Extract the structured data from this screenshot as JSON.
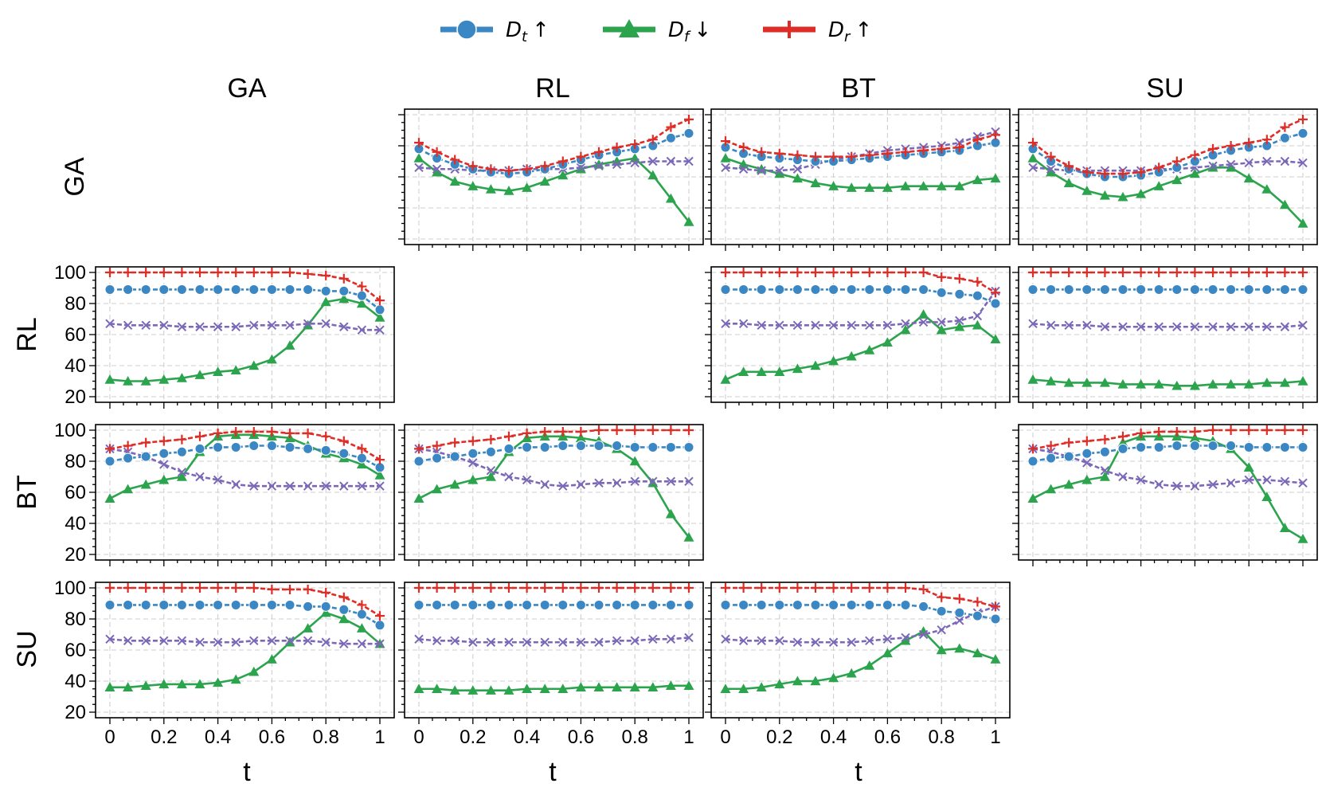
{
  "legend": [
    {
      "base": "D",
      "sub": "t",
      "arrow": "↑",
      "color": "#3a87c4",
      "marker": "circle"
    },
    {
      "base": "D",
      "sub": "f",
      "arrow": "↓",
      "color": "#2ca44e",
      "marker": "triangle"
    },
    {
      "base": "D",
      "sub": "r",
      "arrow": "↑",
      "color": "#de2d26",
      "marker": "plus"
    }
  ],
  "col_titles": [
    "GA",
    "RL",
    "BT",
    "SU"
  ],
  "row_titles": [
    "GA",
    "RL",
    "BT",
    "SU"
  ],
  "xlabel": "t",
  "colors": {
    "Dt": "#3a87c4",
    "Df": "#2ca44e",
    "Dr": "#de2d26",
    "X": "#7b68b8"
  },
  "chart_data": {
    "type": "line",
    "x": [
      0,
      0.0667,
      0.1333,
      0.2,
      0.2667,
      0.3333,
      0.4,
      0.4667,
      0.5333,
      0.6,
      0.6667,
      0.7333,
      0.8,
      0.8667,
      0.9333,
      1
    ],
    "x_ticks": [
      0,
      0.2,
      0.4,
      0.6,
      0.8,
      1
    ],
    "x_tick_labels": [
      "0",
      "0.2",
      "0.4",
      "0.6",
      "0.8",
      "1"
    ],
    "ylim": [
      20,
      100
    ],
    "y_ticks": [
      20,
      40,
      60,
      80,
      100
    ],
    "y_tick_labels": [
      "20",
      "40",
      "60",
      "80",
      "100"
    ],
    "grid": true,
    "series_order": [
      "Df",
      "X",
      "Dt",
      "Dr"
    ],
    "panels": [
      {
        "row": 0,
        "col": 1,
        "series": {
          "Dt": [
            78,
            72,
            68,
            65,
            63,
            62,
            63,
            65,
            68,
            71,
            74,
            76,
            78,
            80,
            85,
            88
          ],
          "Df": [
            72,
            63,
            57,
            54,
            52,
            51,
            53,
            57,
            61,
            65,
            68,
            70,
            72,
            61,
            46,
            31
          ],
          "Dr": [
            82,
            76,
            71,
            67,
            65,
            64,
            65,
            67,
            70,
            73,
            76,
            79,
            81,
            84,
            92,
            97
          ],
          "X": [
            66,
            65,
            65,
            64,
            64,
            64,
            65,
            65,
            65,
            66,
            67,
            68,
            69,
            70,
            70,
            70
          ]
        }
      },
      {
        "row": 0,
        "col": 2,
        "series": {
          "Dt": [
            79,
            75,
            73,
            72,
            71,
            70,
            70,
            71,
            72,
            73,
            74,
            75,
            76,
            77,
            80,
            82
          ],
          "Df": [
            72,
            68,
            65,
            62,
            59,
            56,
            54,
            53,
            53,
            53,
            54,
            54,
            54,
            54,
            58,
            59
          ],
          "Dr": [
            83,
            79,
            76,
            75,
            74,
            73,
            73,
            73,
            74,
            75,
            76,
            77,
            78,
            79,
            84,
            87
          ],
          "X": [
            66,
            65,
            64,
            64,
            65,
            68,
            71,
            73,
            75,
            77,
            78,
            79,
            80,
            82,
            86,
            89
          ]
        }
      },
      {
        "row": 0,
        "col": 3,
        "series": {
          "Dt": [
            78,
            70,
            65,
            62,
            60,
            60,
            61,
            63,
            66,
            70,
            74,
            77,
            79,
            80,
            85,
            88
          ],
          "Df": [
            72,
            63,
            56,
            51,
            48,
            47,
            49,
            54,
            58,
            62,
            66,
            66,
            59,
            52,
            42,
            30
          ],
          "Dr": [
            82,
            73,
            67,
            63,
            62,
            62,
            63,
            66,
            70,
            74,
            78,
            80,
            82,
            84,
            92,
            97
          ],
          "X": [
            66,
            65,
            64,
            64,
            64,
            64,
            64,
            65,
            65,
            66,
            67,
            68,
            69,
            70,
            70,
            69
          ]
        }
      },
      {
        "row": 1,
        "col": 0,
        "series": {
          "Dt": [
            89,
            89,
            89,
            89,
            89,
            89,
            89,
            89,
            89,
            89,
            89,
            89,
            88,
            88,
            85,
            76
          ],
          "Df": [
            31,
            30,
            30,
            31,
            32,
            34,
            36,
            37,
            40,
            44,
            53,
            66,
            81,
            83,
            80,
            71
          ],
          "Dr": [
            100,
            100,
            100,
            100,
            100,
            100,
            100,
            100,
            100,
            100,
            100,
            99,
            98,
            96,
            91,
            82
          ],
          "X": [
            67,
            66,
            66,
            66,
            65,
            65,
            65,
            65,
            66,
            66,
            66,
            67,
            67,
            65,
            63,
            63
          ]
        }
      },
      {
        "row": 1,
        "col": 2,
        "series": {
          "Dt": [
            89,
            89,
            89,
            89,
            89,
            89,
            89,
            89,
            89,
            89,
            89,
            89,
            87,
            86,
            85,
            80
          ],
          "Df": [
            31,
            36,
            36,
            36,
            38,
            40,
            43,
            46,
            50,
            55,
            63,
            73,
            63,
            65,
            66,
            57
          ],
          "Dr": [
            100,
            100,
            100,
            100,
            100,
            100,
            100,
            100,
            100,
            100,
            100,
            100,
            97,
            96,
            94,
            87
          ],
          "X": [
            67,
            67,
            66,
            66,
            66,
            66,
            66,
            66,
            66,
            66,
            67,
            68,
            68,
            69,
            72,
            88
          ]
        }
      },
      {
        "row": 1,
        "col": 3,
        "series": {
          "Dt": [
            89,
            89,
            89,
            89,
            89,
            89,
            89,
            89,
            89,
            89,
            89,
            89,
            89,
            89,
            89,
            89
          ],
          "Df": [
            31,
            30,
            29,
            29,
            29,
            28,
            28,
            28,
            27,
            27,
            28,
            28,
            28,
            29,
            29,
            30
          ],
          "Dr": [
            100,
            100,
            100,
            100,
            100,
            100,
            100,
            100,
            100,
            100,
            100,
            100,
            100,
            100,
            100,
            100
          ],
          "X": [
            67,
            66,
            66,
            66,
            65,
            65,
            65,
            65,
            65,
            65,
            65,
            65,
            65,
            65,
            65,
            66
          ]
        }
      },
      {
        "row": 2,
        "col": 0,
        "series": {
          "Dt": [
            80,
            82,
            83,
            85,
            86,
            88,
            89,
            89,
            90,
            90,
            89,
            88,
            87,
            85,
            82,
            76
          ],
          "Df": [
            56,
            62,
            65,
            68,
            70,
            86,
            96,
            97,
            97,
            96,
            95,
            90,
            85,
            82,
            78,
            71
          ],
          "Dr": [
            88,
            90,
            92,
            93,
            94,
            96,
            98,
            99,
            99,
            99,
            98,
            98,
            96,
            93,
            88,
            81
          ],
          "X": [
            88,
            86,
            83,
            78,
            73,
            70,
            68,
            65,
            64,
            64,
            64,
            64,
            64,
            64,
            64,
            64
          ]
        }
      },
      {
        "row": 2,
        "col": 1,
        "series": {
          "Dt": [
            80,
            82,
            83,
            85,
            86,
            88,
            89,
            89,
            90,
            90,
            90,
            90,
            89,
            89,
            89,
            89
          ],
          "Df": [
            56,
            62,
            65,
            68,
            70,
            86,
            95,
            96,
            96,
            95,
            93,
            88,
            80,
            66,
            46,
            31
          ],
          "Dr": [
            88,
            90,
            92,
            93,
            94,
            96,
            98,
            99,
            99,
            99,
            100,
            100,
            100,
            100,
            100,
            100
          ],
          "X": [
            88,
            86,
            83,
            79,
            74,
            70,
            68,
            65,
            64,
            65,
            66,
            66,
            67,
            67,
            67,
            67
          ]
        }
      },
      {
        "row": 2,
        "col": 3,
        "series": {
          "Dt": [
            80,
            82,
            83,
            85,
            86,
            88,
            89,
            89,
            90,
            90,
            90,
            90,
            89,
            89,
            89,
            89
          ],
          "Df": [
            56,
            62,
            65,
            68,
            70,
            92,
            96,
            96,
            96,
            95,
            93,
            88,
            76,
            57,
            37,
            30
          ],
          "Dr": [
            88,
            90,
            92,
            93,
            94,
            96,
            98,
            99,
            99,
            99,
            100,
            100,
            100,
            100,
            100,
            100
          ],
          "X": [
            88,
            86,
            83,
            79,
            74,
            70,
            68,
            65,
            64,
            64,
            65,
            66,
            68,
            68,
            67,
            66
          ]
        }
      },
      {
        "row": 3,
        "col": 0,
        "series": {
          "Dt": [
            89,
            89,
            89,
            89,
            89,
            89,
            89,
            89,
            89,
            89,
            89,
            88,
            88,
            86,
            83,
            76
          ],
          "Df": [
            36,
            36,
            37,
            38,
            38,
            38,
            39,
            41,
            46,
            54,
            65,
            74,
            84,
            80,
            74,
            64
          ],
          "Dr": [
            100,
            100,
            100,
            100,
            100,
            100,
            100,
            100,
            100,
            99,
            99,
            99,
            97,
            94,
            89,
            82
          ],
          "X": [
            67,
            66,
            66,
            66,
            66,
            65,
            65,
            65,
            66,
            66,
            66,
            66,
            65,
            64,
            64,
            64
          ]
        }
      },
      {
        "row": 3,
        "col": 1,
        "series": {
          "Dt": [
            89,
            89,
            89,
            89,
            89,
            89,
            89,
            89,
            89,
            89,
            89,
            89,
            89,
            89,
            89,
            89
          ],
          "Df": [
            35,
            35,
            34,
            34,
            34,
            34,
            35,
            35,
            35,
            36,
            36,
            36,
            36,
            36,
            37,
            37
          ],
          "Dr": [
            100,
            100,
            100,
            100,
            100,
            100,
            100,
            100,
            100,
            100,
            100,
            100,
            100,
            100,
            100,
            100
          ],
          "X": [
            67,
            66,
            66,
            65,
            65,
            65,
            65,
            65,
            65,
            65,
            65,
            66,
            66,
            67,
            67,
            68
          ]
        }
      },
      {
        "row": 3,
        "col": 2,
        "series": {
          "Dt": [
            89,
            89,
            89,
            89,
            89,
            89,
            89,
            89,
            89,
            89,
            89,
            88,
            85,
            84,
            82,
            80
          ],
          "Df": [
            35,
            35,
            36,
            38,
            40,
            40,
            42,
            45,
            50,
            58,
            66,
            72,
            60,
            61,
            58,
            54
          ],
          "Dr": [
            100,
            100,
            100,
            100,
            100,
            100,
            100,
            100,
            100,
            100,
            100,
            99,
            94,
            93,
            91,
            88
          ],
          "X": [
            67,
            66,
            66,
            66,
            65,
            65,
            65,
            65,
            66,
            67,
            68,
            70,
            73,
            79,
            84,
            88
          ]
        }
      }
    ]
  }
}
